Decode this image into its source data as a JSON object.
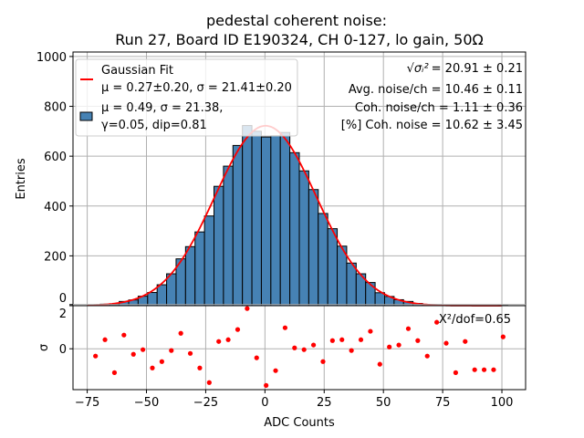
{
  "chart_data": [
    {
      "type": "bar",
      "panel": "histogram",
      "title_line1": "pedestal coherent noise:",
      "title_line2": "Run 27, Board ID E190324, CH 0-127, lo gain, 50Ω",
      "xlabel": "",
      "ylabel": "Entries",
      "xlim": [
        -81,
        110
      ],
      "ylim": [
        0,
        1018
      ],
      "yticks": [
        0,
        200,
        400,
        600,
        800,
        1000
      ],
      "grid": true,
      "bin_width": 4,
      "bin_centers": [
        -71.5,
        -67.5,
        -63.5,
        -59.5,
        -55.5,
        -51.5,
        -47.5,
        -43.5,
        -39.5,
        -35.5,
        -31.5,
        -27.5,
        -23.5,
        -19.5,
        -15.5,
        -11.5,
        -7.5,
        -3.5,
        0.5,
        4.5,
        8.5,
        12.5,
        16.5,
        20.5,
        24.5,
        28.5,
        32.5,
        36.5,
        40.5,
        44.5,
        48.5,
        52.5,
        56.5,
        60.5,
        64.5,
        68.5,
        72.5,
        76.5,
        80.5,
        84.5,
        88.5,
        92.5,
        96.5,
        100.5
      ],
      "values": [
        2,
        6,
        5,
        17,
        23,
        38,
        53,
        84,
        128,
        188,
        237,
        296,
        360,
        479,
        560,
        643,
        723,
        700,
        677,
        682,
        695,
        614,
        541,
        466,
        370,
        309,
        239,
        171,
        128,
        93,
        52,
        37,
        24,
        17,
        9,
        4,
        4,
        2,
        0,
        1,
        0,
        0,
        0,
        1
      ],
      "bar_color": "#4682b4",
      "fit": {
        "type": "gaussian",
        "amplitude": 722,
        "mu": 0.27,
        "sigma": 21.41,
        "range": [
          -75,
          100
        ],
        "color": "#ff0000"
      },
      "legend": {
        "placement": "upper-left",
        "entries": [
          {
            "line1": "Gaussian Fit",
            "line2": "μ = 0.27±0.20, σ = 21.41±0.20",
            "marker": "line",
            "color": "#ff0000"
          },
          {
            "line1": "μ = 0.49, σ = 21.38,",
            "line2": "γ=0.05, dip=0.81",
            "marker": "patch",
            "color": "#4682b4"
          }
        ]
      },
      "annotations": [
        {
          "label": "√σᵢ²",
          "value": " = 20.91 ± 0.21"
        },
        {
          "label": "",
          "value": "Avg. noise/ch = 10.46 ± 0.11"
        },
        {
          "label": "",
          "value": "Coh. noise/ch = 1.11 ± 0.36"
        },
        {
          "label": "",
          "value": "[%] Coh. noise = 10.62  ± 3.45"
        }
      ]
    },
    {
      "type": "scatter",
      "panel": "residuals",
      "xlabel": "ADC Counts",
      "ylabel": "σ",
      "xlim": [
        -81,
        110
      ],
      "ylim": [
        -1.85,
        1.95
      ],
      "xticks": [
        -75,
        -50,
        -25,
        0,
        25,
        50,
        75,
        100
      ],
      "xtick_labels": [
        "−75",
        "−50",
        "−25",
        "0",
        "25",
        "50",
        "75",
        "100"
      ],
      "yticks": [
        0,
        2
      ],
      "grid": true,
      "color": "#ff0000",
      "x": [
        -71.5,
        -67.5,
        -63.5,
        -59.5,
        -55.5,
        -51.5,
        -47.5,
        -43.5,
        -39.5,
        -35.5,
        -31.5,
        -27.5,
        -23.5,
        -19.5,
        -15.5,
        -11.5,
        -7.5,
        -3.5,
        0.5,
        4.5,
        8.5,
        12.5,
        16.5,
        20.5,
        24.5,
        28.5,
        32.5,
        36.5,
        40.5,
        44.5,
        48.5,
        52.5,
        56.5,
        60.5,
        64.5,
        68.5,
        72.5,
        76.5,
        80.5,
        84.5,
        88.5,
        92.5,
        96.5,
        100.5
      ],
      "y": [
        -0.33,
        0.41,
        -1.08,
        0.62,
        -0.25,
        -0.04,
        -0.87,
        -0.58,
        -0.08,
        0.7,
        -0.21,
        -0.87,
        -1.53,
        0.33,
        0.41,
        0.87,
        1.82,
        -0.41,
        -1.66,
        -0.99,
        0.95,
        0.04,
        -0.04,
        0.17,
        -0.58,
        0.37,
        0.41,
        -0.08,
        0.41,
        0.79,
        -0.7,
        0.08,
        0.17,
        0.91,
        0.37,
        -0.33,
        1.2,
        0.25,
        -1.08,
        0.33,
        -0.95,
        -0.95,
        -0.95,
        0.54
      ],
      "annotation": "X²/dof=0.65"
    }
  ]
}
